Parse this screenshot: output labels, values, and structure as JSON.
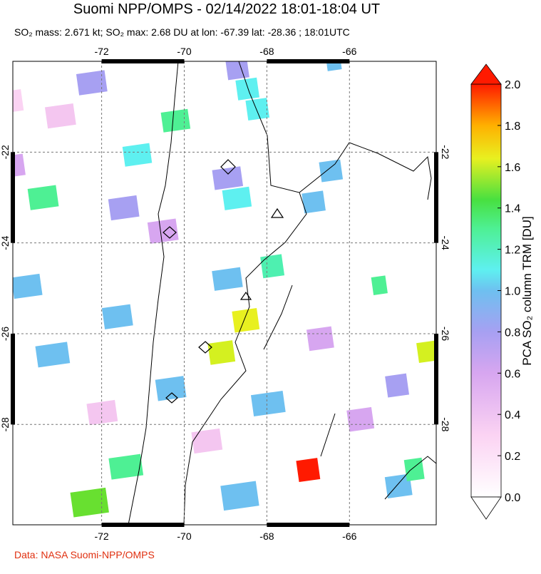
{
  "title": "Suomi NPP/OMPS - 02/14/2022 18:01-18:04 UT",
  "subtitle": "SO₂ mass: 2.671 kt; SO₂ max: 2.68 DU at lon: -67.39 lat: -28.36 ; 18:01UTC",
  "map": {
    "xlim": [
      -74.15,
      -63.9
    ],
    "ylim": [
      -30.21,
      -20.0
    ],
    "xticks": [
      -72,
      -70,
      -68,
      -66
    ],
    "yticks": [
      -22,
      -24,
      -26,
      -28
    ]
  },
  "colorbar": {
    "label": "PCA SO₂ column TRM [DU]",
    "lim": [
      0,
      2
    ],
    "ticks": [
      {
        "value": 0,
        "label": "0.0"
      },
      {
        "value": 0.2,
        "label": "0.2"
      },
      {
        "value": 0.4,
        "label": "0.4"
      },
      {
        "value": 0.6,
        "label": "0.6"
      },
      {
        "value": 0.8,
        "label": "0.8"
      },
      {
        "value": 1.0,
        "label": "1.0"
      },
      {
        "value": 1.2,
        "label": "1.2"
      },
      {
        "value": 1.4,
        "label": "1.4"
      },
      {
        "value": 1.6,
        "label": "1.6"
      },
      {
        "value": 1.8,
        "label": "1.8"
      },
      {
        "value": 2.0,
        "label": "2.0"
      }
    ]
  },
  "credit": "Data: NASA Suomi-NPP/OMPS"
}
